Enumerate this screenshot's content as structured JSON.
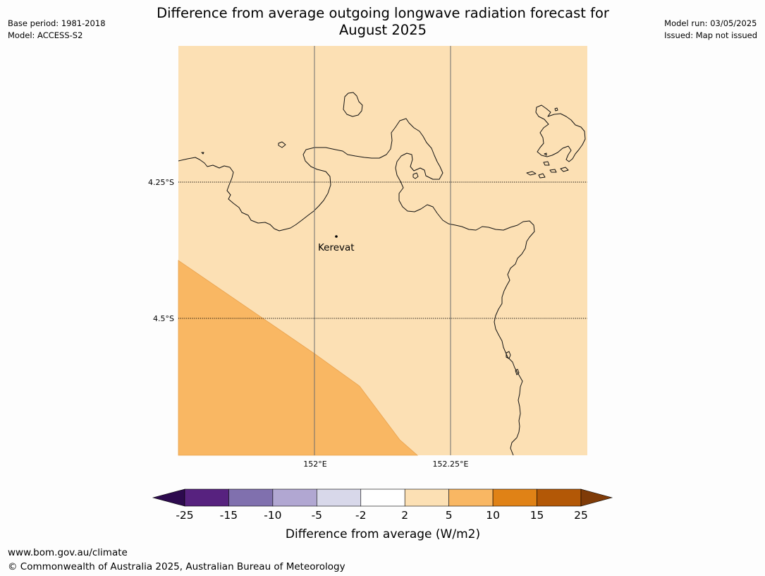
{
  "header": {
    "title_line1": "Difference from average outgoing longwave radiation forecast for",
    "title_line2": "August 2025",
    "base_period": "Base period: 1981-2018",
    "model": "Model: ACCESS-S2",
    "model_run": "Model run: 03/05/2025",
    "issued": "Issued: Map not issued"
  },
  "map": {
    "background_color": "#fce0b4",
    "anomaly_color": "#f9b763",
    "coastline_color": "#111111",
    "grid_lines": {
      "longitudes": [
        "152°E",
        "152.25°E"
      ],
      "latitudes": [
        "4.25°S",
        "4.5°S"
      ]
    },
    "places": [
      {
        "name": "Kerevat"
      }
    ]
  },
  "colorbar": {
    "title": "Difference from average (W/m2)",
    "ticks": [
      "-25",
      "-15",
      "-10",
      "-5",
      "-2",
      "2",
      "5",
      "10",
      "15",
      "25"
    ],
    "colors": [
      "#2d0a4e",
      "#57227f",
      "#8070ae",
      "#b1a7d2",
      "#d8d8ea",
      "#ffffff",
      "#fce0b4",
      "#f9b763",
      "#e08216",
      "#b35806",
      "#7f3b08"
    ]
  },
  "footer": {
    "url": "www.bom.gov.au/climate",
    "copyright": "© Commonwealth of Australia 2025, Australian Bureau of Meteorology"
  }
}
